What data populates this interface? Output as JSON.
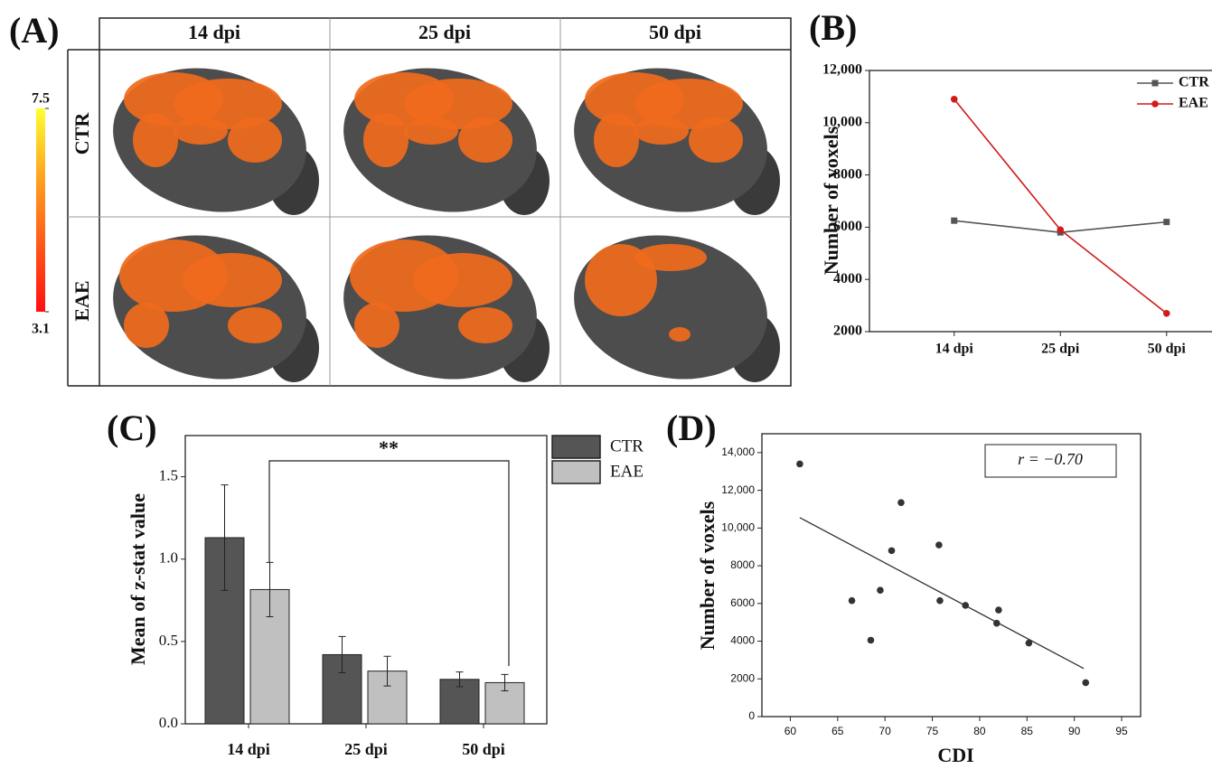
{
  "figure_a": {
    "label": "(A)",
    "columns": [
      "14 dpi",
      "25 dpi",
      "50 dpi"
    ],
    "rows": [
      "CTR",
      "EAE"
    ],
    "colorbar": {
      "ticks": [
        7.5,
        3.1
      ]
    }
  },
  "chart_data": [
    {
      "type": "line",
      "title": "(B)",
      "categories": [
        "14 dpi",
        "25 dpi",
        "50 dpi"
      ],
      "y_label": "Number of voxels",
      "ylim": [
        2000,
        12000
      ],
      "yticks": [
        2000,
        4000,
        6000,
        8000,
        {
          "value": 10000,
          "label": "10,000"
        },
        {
          "value": 12000,
          "label": "12,000"
        }
      ],
      "series": [
        {
          "name": "CTR",
          "color": "#555555",
          "marker": "square",
          "values": [
            6250,
            5800,
            6200
          ]
        },
        {
          "name": "EAE",
          "color": "#d01c1c",
          "marker": "circle",
          "values": [
            10900,
            5900,
            2700
          ]
        }
      ]
    },
    {
      "type": "bar",
      "title": "(C)",
      "categories": [
        "14 dpi",
        "25 dpi",
        "50 dpi"
      ],
      "y_label": "Mean of z-stat value",
      "ylim": [
        0,
        1.75
      ],
      "yticks": [
        {
          "value": 0,
          "label": "0.0"
        },
        0.5,
        {
          "value": 1,
          "label": "1.0"
        },
        1.5
      ],
      "series": [
        {
          "name": "CTR",
          "color": "#555555",
          "values": [
            1.13,
            0.42,
            0.27
          ],
          "errors": [
            0.32,
            0.11,
            0.045
          ]
        },
        {
          "name": "EAE",
          "color": "#c0c0c0",
          "values": [
            0.815,
            0.32,
            0.25
          ],
          "errors": [
            0.165,
            0.09,
            0.05
          ]
        }
      ],
      "annotation": "**"
    },
    {
      "type": "scatter",
      "title": "(D)",
      "x_label": "CDI",
      "y_label": "Number of voxels",
      "xlim": [
        57,
        97
      ],
      "xticks": [
        60,
        65,
        70,
        75,
        80,
        85,
        90,
        95
      ],
      "ylim": [
        0,
        15000
      ],
      "yticks": [
        0,
        2000,
        4000,
        6000,
        8000,
        {
          "value": 10000,
          "label": "10,000"
        },
        {
          "value": 12000,
          "label": "12,000"
        },
        {
          "value": 14000,
          "label": "14,000"
        }
      ],
      "color": "#333333",
      "x": [
        61,
        66.5,
        68.5,
        69.5,
        70.7,
        71.7,
        75.7,
        75.8,
        78.5,
        81.8,
        82,
        85.2,
        91.2
      ],
      "values": [
        13400,
        6150,
        4050,
        6700,
        8800,
        11350,
        9100,
        6150,
        5900,
        4950,
        5650,
        3900,
        1800
      ],
      "trend_line": {
        "x": [
          61,
          91
        ],
        "values": [
          10550,
          2550
        ]
      },
      "annotation": "r = −0.70"
    }
  ]
}
